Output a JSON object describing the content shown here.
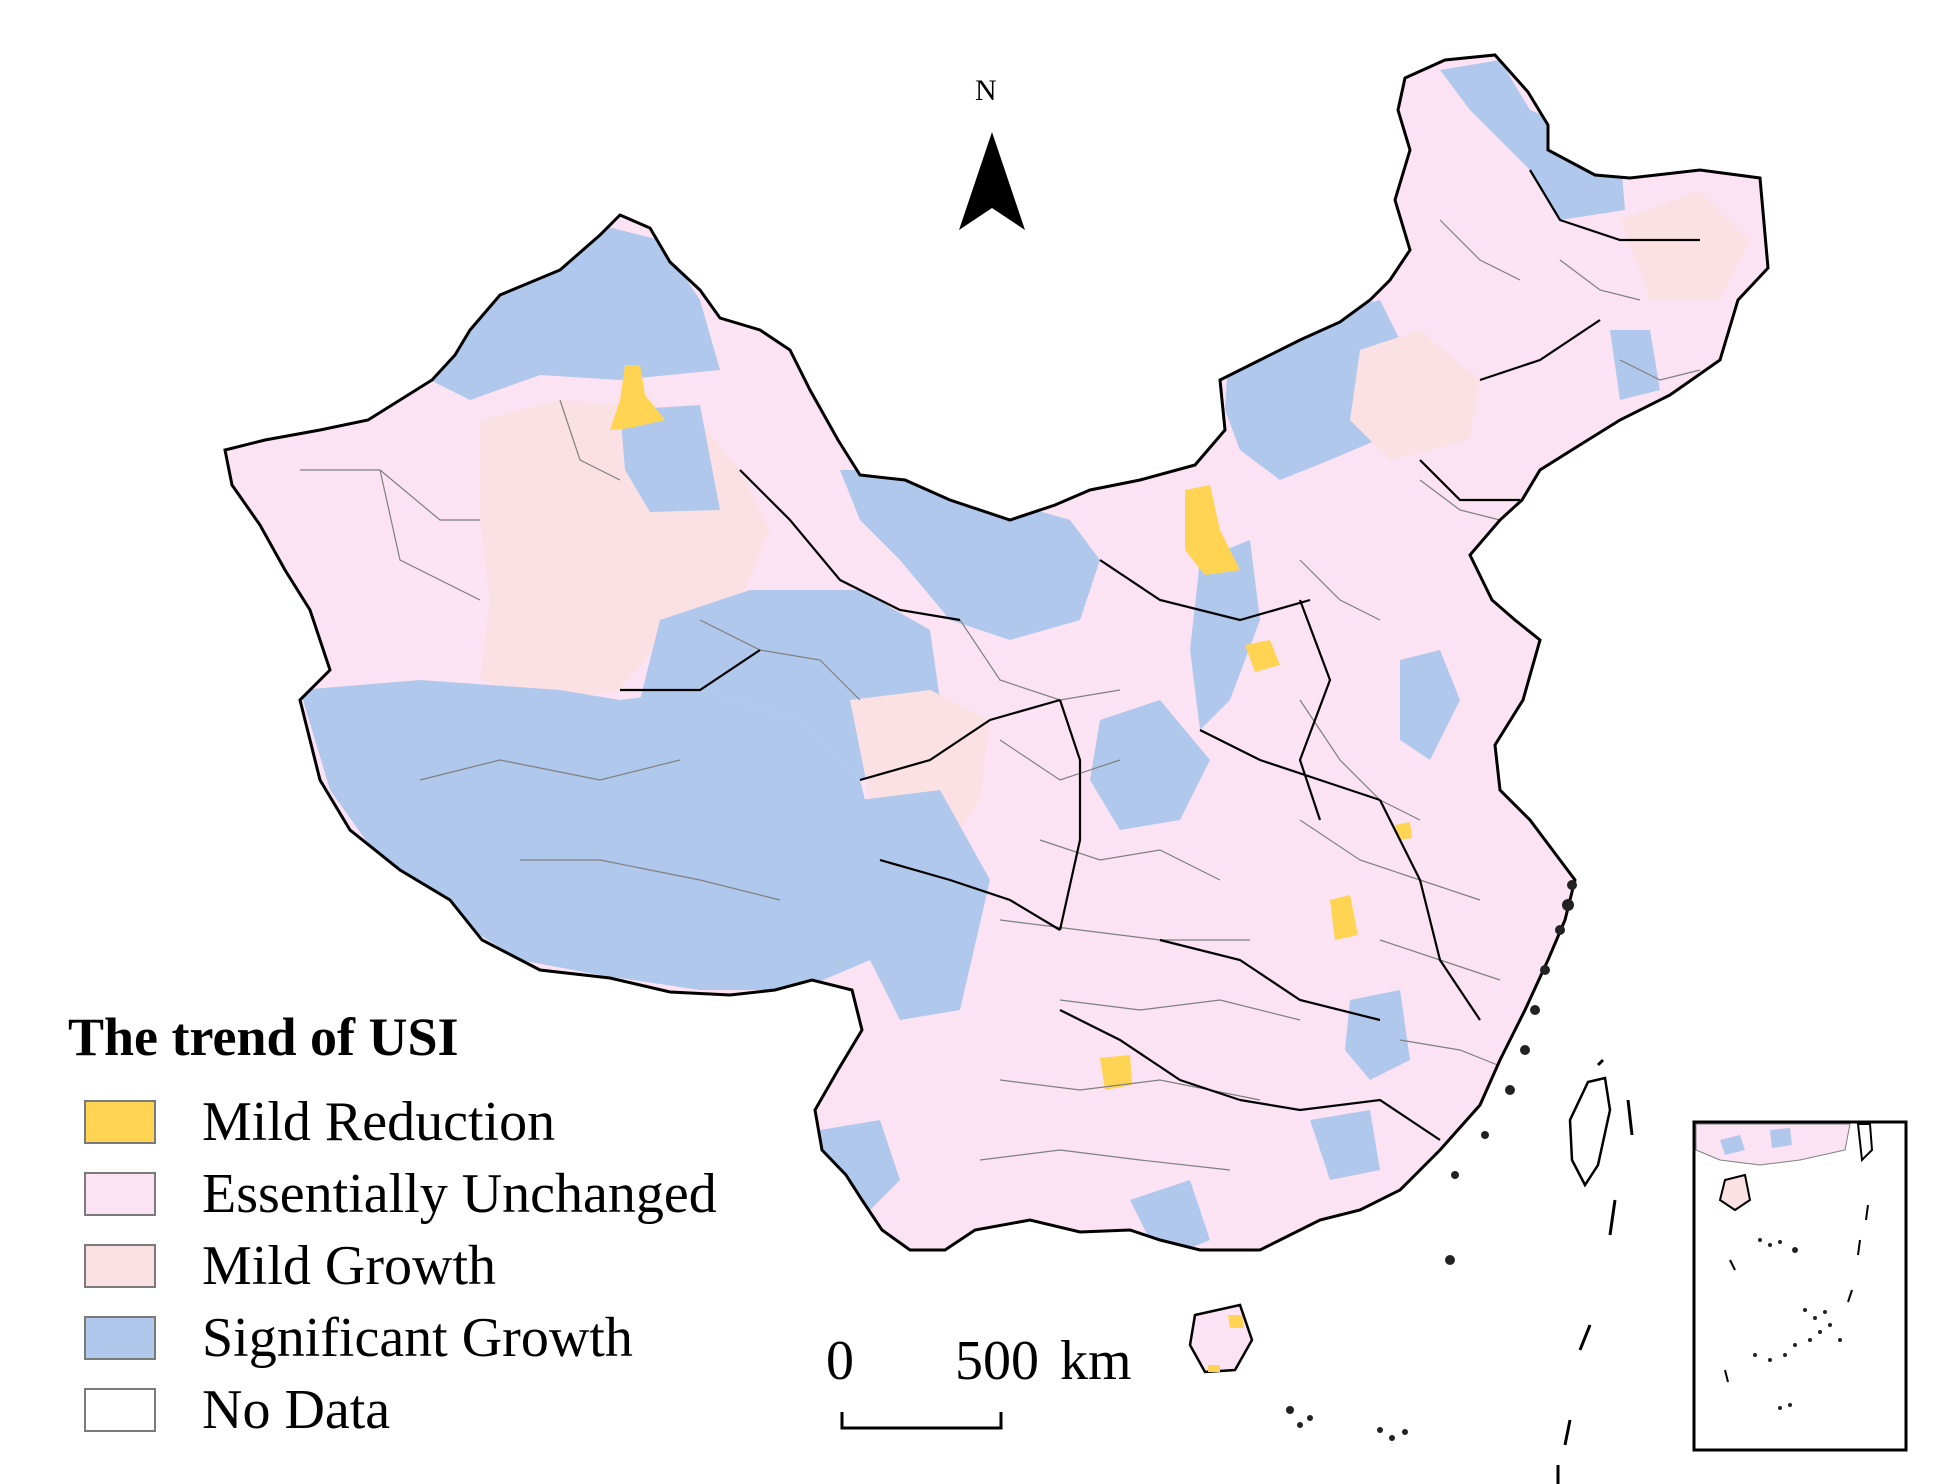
{
  "map": {
    "north_label": "N",
    "legend": {
      "title": "The trend of USI",
      "items": [
        {
          "label": "Mild Reduction",
          "color": "#ffd452"
        },
        {
          "label": "Essentially Unchanged",
          "color": "#fbe3f3"
        },
        {
          "label": "Mild Growth",
          "color": "#fbe1e4"
        },
        {
          "label": "Significant Growth",
          "color": "#afc8ec"
        },
        {
          "label": "No Data",
          "color": "#ffffff"
        }
      ]
    },
    "scale_bar": {
      "start": "0",
      "end": "500",
      "unit": "km"
    },
    "colors": {
      "boundary": "#000000",
      "internal_line": "#7f7f7f"
    }
  }
}
